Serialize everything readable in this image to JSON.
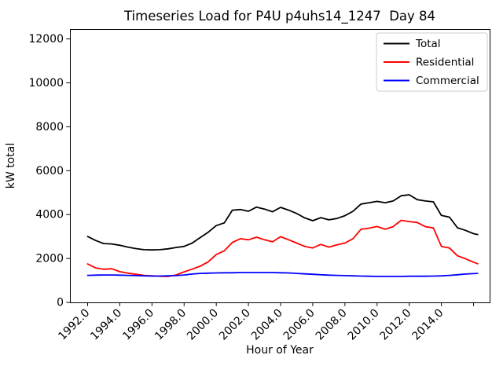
{
  "chart_data": {
    "type": "line",
    "title": "Timeseries Load for P4U p4uhs14_1247  Day 84",
    "xlabel": "Hour of Year",
    "ylabel": "kW total",
    "xlim": [
      1990.9,
      2017.0
    ],
    "ylim": [
      0,
      12450
    ],
    "grid": false,
    "legend_position": "upper right",
    "x_ticks": [
      {
        "value": 1992,
        "label": "1992.0"
      },
      {
        "value": 1994,
        "label": "1994.0"
      },
      {
        "value": 1996,
        "label": "1996.0"
      },
      {
        "value": 1998,
        "label": "1998.0"
      },
      {
        "value": 2000,
        "label": "2000.0"
      },
      {
        "value": 2002,
        "label": "2002.0"
      },
      {
        "value": 2004,
        "label": "2004.0"
      },
      {
        "value": 2006,
        "label": "2006.0"
      },
      {
        "value": 2008,
        "label": "2008.0"
      },
      {
        "value": 2010,
        "label": "2010.0"
      },
      {
        "value": 2012,
        "label": "2012.0"
      },
      {
        "value": 2014,
        "label": "2014.0"
      },
      {
        "value": 2016,
        "label": ""
      }
    ],
    "y_ticks": [
      {
        "value": 0,
        "label": "0"
      },
      {
        "value": 2000,
        "label": "2000"
      },
      {
        "value": 4000,
        "label": "4000"
      },
      {
        "value": 6000,
        "label": "6000"
      },
      {
        "value": 8000,
        "label": "8000"
      },
      {
        "value": 10000,
        "label": "10000"
      },
      {
        "value": 12000,
        "label": "12000"
      }
    ],
    "x": [
      1992.0,
      1992.5,
      1993.0,
      1993.5,
      1994.0,
      1994.5,
      1995.0,
      1995.5,
      1996.0,
      1996.5,
      1997.0,
      1997.5,
      1998.0,
      1998.5,
      1999.0,
      1999.5,
      2000.0,
      2000.5,
      2001.0,
      2001.5,
      2002.0,
      2002.5,
      2003.0,
      2003.5,
      2004.0,
      2004.5,
      2005.0,
      2005.5,
      2006.0,
      2006.5,
      2007.0,
      2007.5,
      2008.0,
      2008.5,
      2009.0,
      2009.5,
      2010.0,
      2010.5,
      2011.0,
      2011.5,
      2012.0,
      2012.5,
      2013.0,
      2013.5,
      2014.0,
      2014.5,
      2015.0,
      2015.5,
      2016.0,
      2016.25
    ],
    "series": [
      {
        "name": "Total",
        "color": "#000000",
        "values": [
          3000,
          2820,
          2680,
          2660,
          2600,
          2520,
          2450,
          2400,
          2390,
          2400,
          2440,
          2500,
          2550,
          2700,
          2950,
          3200,
          3500,
          3620,
          4200,
          4230,
          4150,
          4340,
          4250,
          4130,
          4330,
          4200,
          4050,
          3850,
          3720,
          3860,
          3760,
          3820,
          3950,
          4150,
          4480,
          4540,
          4600,
          4540,
          4620,
          4860,
          4900,
          4680,
          4620,
          4580,
          3960,
          3880,
          3400,
          3280,
          3130,
          3090
        ]
      },
      {
        "name": "Residential",
        "color": "#ff0000",
        "values": [
          1750,
          1570,
          1510,
          1530,
          1400,
          1330,
          1280,
          1230,
          1210,
          1190,
          1180,
          1250,
          1390,
          1515,
          1650,
          1850,
          2180,
          2350,
          2730,
          2900,
          2850,
          2970,
          2850,
          2760,
          2990,
          2850,
          2700,
          2550,
          2480,
          2640,
          2520,
          2620,
          2700,
          2900,
          3330,
          3380,
          3455,
          3330,
          3450,
          3740,
          3680,
          3640,
          3450,
          3390,
          2550,
          2480,
          2120,
          1990,
          1830,
          1760
        ]
      },
      {
        "name": "Commercial",
        "color": "#0000ff",
        "values": [
          1230,
          1240,
          1250,
          1250,
          1240,
          1230,
          1220,
          1210,
          1200,
          1200,
          1210,
          1220,
          1250,
          1290,
          1320,
          1330,
          1340,
          1350,
          1350,
          1360,
          1360,
          1360,
          1360,
          1360,
          1350,
          1340,
          1320,
          1300,
          1280,
          1260,
          1240,
          1230,
          1220,
          1210,
          1200,
          1190,
          1180,
          1180,
          1180,
          1180,
          1190,
          1190,
          1190,
          1200,
          1210,
          1230,
          1260,
          1290,
          1310,
          1320
        ]
      }
    ]
  }
}
